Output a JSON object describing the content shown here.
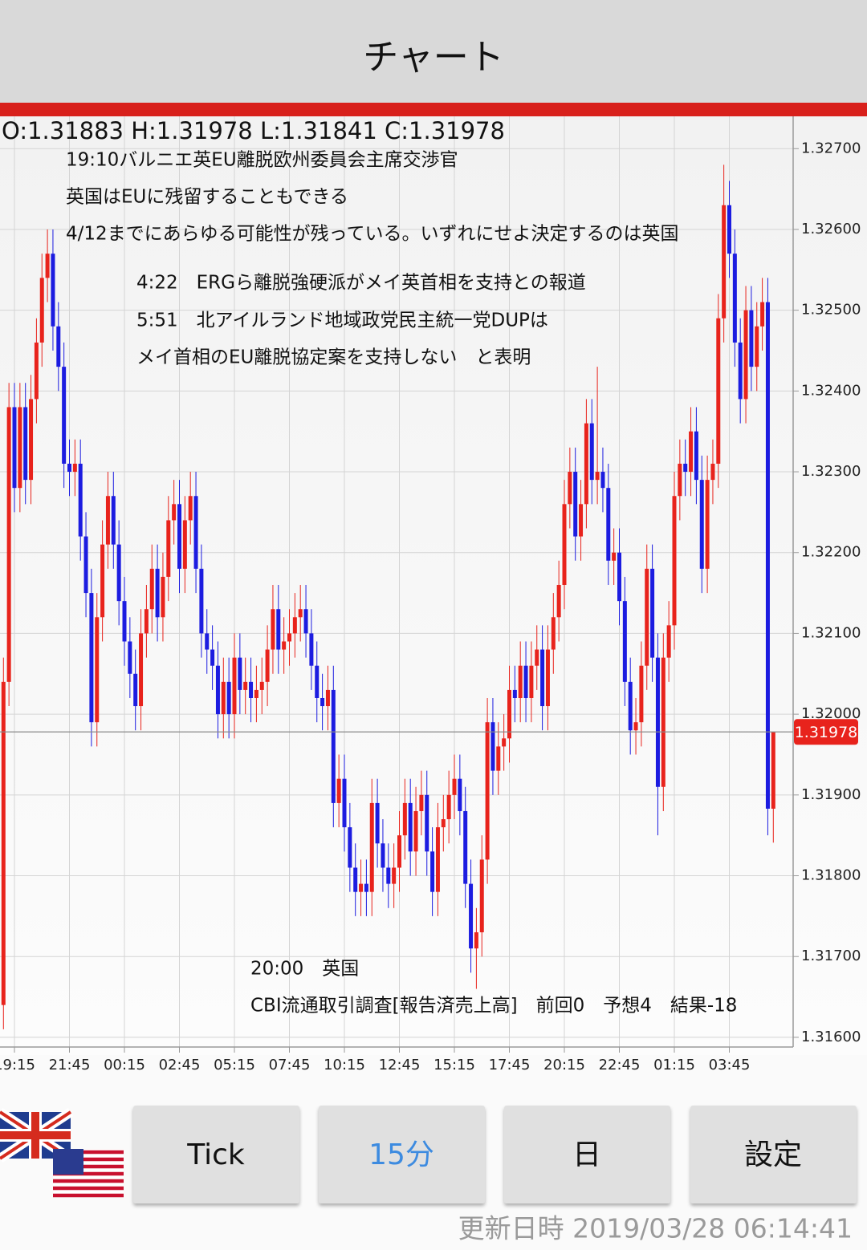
{
  "header": {
    "title": "チャート"
  },
  "chart_data": {
    "type": "candlestick",
    "ohlc_label": "O:1.31883 H:1.31978 L:1.31841 C:1.31978",
    "annotations": [
      "19:10バルニエ英EU離脱欧州委員会主席交渉官",
      "英国はEUに残留することもできる",
      "4/12までにあらゆる可能性が残っている。いずれにせよ決定するのは英国",
      "4:22　ERGら離脱強硬派がメイ英首相を支持との報道",
      "5:51　北アイルランド地域政党民主統一党DUPは",
      "メイ首相のEU離脱協定案を支持しない　と表明",
      "20:00　英国",
      "CBI流通取引調査[報告済売上高]　前回0　予想4　結果-18"
    ],
    "categories": [
      null,
      null,
      "19:15",
      null,
      null,
      null,
      null,
      null,
      null,
      null,
      null,
      null,
      "21:45",
      null,
      null,
      null,
      null,
      null,
      null,
      null,
      null,
      null,
      "00:15",
      null,
      null,
      null,
      null,
      null,
      null,
      null,
      null,
      null,
      "02:45",
      null,
      null,
      null,
      null,
      null,
      null,
      null,
      null,
      null,
      "05:15",
      null,
      null,
      null,
      null,
      null,
      null,
      null,
      null,
      null,
      "07:45",
      null,
      null,
      null,
      null,
      null,
      null,
      null,
      null,
      null,
      "10:15",
      null,
      null,
      null,
      null,
      null,
      null,
      null,
      null,
      null,
      "12:45",
      null,
      null,
      null,
      null,
      null,
      null,
      null,
      null,
      null,
      "15:15",
      null,
      null,
      null,
      null,
      null,
      null,
      null,
      null,
      null,
      "17:45",
      null,
      null,
      null,
      null,
      null,
      null,
      null,
      null,
      null,
      "20:15",
      null,
      null,
      null,
      null,
      null,
      null,
      null,
      null,
      null,
      "22:45",
      null,
      null,
      null,
      null,
      null,
      null,
      null,
      null,
      null,
      "01:15",
      null,
      null,
      null,
      null,
      null,
      null,
      null,
      null,
      null,
      "03:45",
      null,
      null,
      null,
      null,
      null,
      null,
      null,
      null
    ],
    "open": [
      1.3164,
      1.3204,
      1.3238,
      1.3228,
      1.3238,
      1.3229,
      1.3239,
      1.3246,
      1.3254,
      1.3257,
      1.3248,
      1.3243,
      1.3231,
      1.323,
      1.3231,
      1.3222,
      1.3215,
      1.3199,
      1.3212,
      1.3221,
      1.3227,
      1.3221,
      1.3214,
      1.3209,
      1.3205,
      1.3201,
      1.321,
      1.3213,
      1.3218,
      1.3212,
      1.3217,
      1.3224,
      1.3226,
      1.3218,
      1.3224,
      1.3227,
      1.3218,
      1.321,
      1.3208,
      1.3206,
      1.32,
      1.3204,
      1.32,
      1.3207,
      1.3203,
      1.3204,
      1.3202,
      1.3203,
      1.3204,
      1.3208,
      1.3213,
      1.3208,
      1.3209,
      1.321,
      1.3212,
      1.3213,
      1.321,
      1.3206,
      1.3202,
      1.3201,
      1.3203,
      1.3189,
      1.3192,
      1.3186,
      1.3181,
      1.3178,
      1.3179,
      1.3178,
      1.3189,
      1.3184,
      1.3181,
      1.3179,
      1.3181,
      1.3185,
      1.3189,
      1.3183,
      1.3188,
      1.319,
      1.3183,
      1.3178,
      1.3186,
      1.3187,
      1.319,
      1.3192,
      1.3188,
      1.3179,
      1.3171,
      1.3173,
      1.3182,
      1.3199,
      1.3193,
      1.3196,
      1.3197,
      1.3203,
      1.3202,
      1.3206,
      1.3202,
      1.3206,
      1.3208,
      1.3201,
      1.3208,
      1.3212,
      1.3216,
      1.3226,
      1.323,
      1.3222,
      1.3226,
      1.3236,
      1.3229,
      1.323,
      1.3228,
      1.3219,
      1.322,
      1.3214,
      1.3204,
      1.3198,
      1.3199,
      1.3206,
      1.3218,
      1.3207,
      1.3191,
      1.3207,
      1.3211,
      1.3227,
      1.3231,
      1.323,
      1.3235,
      1.3229,
      1.3218,
      1.3229,
      1.3231,
      1.3249,
      1.3263,
      1.3257,
      1.3246,
      1.3239,
      1.325,
      1.3243,
      1.3248,
      1.3251,
      1.31883
    ],
    "high": [
      1.3207,
      1.3241,
      1.3241,
      1.3241,
      1.3241,
      1.3242,
      1.3249,
      1.3257,
      1.326,
      1.326,
      1.3251,
      1.3246,
      1.3234,
      1.3234,
      1.3234,
      1.3225,
      1.3218,
      1.3215,
      1.3224,
      1.323,
      1.323,
      1.3224,
      1.3217,
      1.3212,
      1.3208,
      1.3213,
      1.3216,
      1.3221,
      1.3221,
      1.322,
      1.3227,
      1.3229,
      1.3229,
      1.3227,
      1.323,
      1.323,
      1.3221,
      1.3213,
      1.3211,
      1.3209,
      1.3207,
      1.3207,
      1.321,
      1.321,
      1.3207,
      1.3207,
      1.3206,
      1.3207,
      1.3211,
      1.3216,
      1.3216,
      1.3212,
      1.3213,
      1.3215,
      1.3216,
      1.3216,
      1.3213,
      1.3209,
      1.3205,
      1.3206,
      1.3206,
      1.3195,
      1.3195,
      1.3189,
      1.3184,
      1.3182,
      1.3182,
      1.3192,
      1.3192,
      1.3187,
      1.3184,
      1.3184,
      1.3188,
      1.3192,
      1.3192,
      1.3191,
      1.3193,
      1.3193,
      1.3186,
      1.3189,
      1.319,
      1.3193,
      1.3195,
      1.3195,
      1.3191,
      1.3182,
      1.3176,
      1.3185,
      1.3202,
      1.3202,
      1.3199,
      1.32,
      1.3206,
      1.3206,
      1.3209,
      1.3209,
      1.3209,
      1.3211,
      1.3211,
      1.3211,
      1.3215,
      1.3219,
      1.3229,
      1.3233,
      1.3233,
      1.3229,
      1.3239,
      1.3239,
      1.3243,
      1.3233,
      1.3231,
      1.3223,
      1.3223,
      1.3217,
      1.3207,
      1.3202,
      1.3209,
      1.3221,
      1.3221,
      1.321,
      1.321,
      1.3214,
      1.323,
      1.3234,
      1.3234,
      1.3238,
      1.3238,
      1.3232,
      1.3232,
      1.3234,
      1.3252,
      1.3268,
      1.3266,
      1.326,
      1.3249,
      1.3253,
      1.3253,
      1.3251,
      1.3254,
      1.3254,
      1.31978
    ],
    "low": [
      1.3161,
      1.3201,
      1.3225,
      1.3225,
      1.3226,
      1.3226,
      1.3236,
      1.3243,
      1.3251,
      1.3245,
      1.324,
      1.3228,
      1.3227,
      1.3227,
      1.3219,
      1.3212,
      1.3196,
      1.3196,
      1.3209,
      1.3218,
      1.3218,
      1.3211,
      1.3206,
      1.3202,
      1.3198,
      1.3198,
      1.3207,
      1.321,
      1.3209,
      1.3209,
      1.3214,
      1.3221,
      1.3215,
      1.3215,
      1.3221,
      1.3215,
      1.3207,
      1.3205,
      1.3203,
      1.3197,
      1.3197,
      1.3197,
      1.3197,
      1.32,
      1.32,
      1.3199,
      1.3199,
      1.32,
      1.3201,
      1.3205,
      1.3205,
      1.3205,
      1.3206,
      1.3207,
      1.3209,
      1.3207,
      1.3203,
      1.3199,
      1.3198,
      1.3198,
      1.3186,
      1.3186,
      1.3183,
      1.3178,
      1.3175,
      1.3175,
      1.3175,
      1.3175,
      1.3181,
      1.3178,
      1.3176,
      1.3176,
      1.3178,
      1.3182,
      1.318,
      1.318,
      1.3185,
      1.318,
      1.3175,
      1.3175,
      1.3183,
      1.3184,
      1.3187,
      1.3185,
      1.3176,
      1.3168,
      1.3166,
      1.317,
      1.3179,
      1.319,
      1.319,
      1.3193,
      1.3194,
      1.3199,
      1.3199,
      1.3199,
      1.3199,
      1.3203,
      1.3198,
      1.3198,
      1.3205,
      1.3209,
      1.3213,
      1.3223,
      1.3219,
      1.3219,
      1.3223,
      1.3226,
      1.3226,
      1.3225,
      1.3216,
      1.3216,
      1.3211,
      1.3201,
      1.3195,
      1.3195,
      1.3196,
      1.3203,
      1.3204,
      1.3185,
      1.3188,
      1.3204,
      1.3208,
      1.3224,
      1.3227,
      1.3227,
      1.3226,
      1.3215,
      1.3215,
      1.3226,
      1.3228,
      1.3246,
      1.3254,
      1.3243,
      1.3236,
      1.3236,
      1.324,
      1.324,
      1.3245,
      1.3185,
      1.31841
    ],
    "close": [
      1.3204,
      1.3238,
      1.3228,
      1.3238,
      1.3229,
      1.3239,
      1.3246,
      1.3254,
      1.3257,
      1.3248,
      1.3243,
      1.3231,
      1.323,
      1.3231,
      1.3222,
      1.3215,
      1.3199,
      1.3212,
      1.3221,
      1.3227,
      1.3221,
      1.3214,
      1.3209,
      1.3205,
      1.3201,
      1.321,
      1.3213,
      1.3218,
      1.3212,
      1.3217,
      1.3224,
      1.3226,
      1.3218,
      1.3224,
      1.3227,
      1.3218,
      1.321,
      1.3208,
      1.3206,
      1.32,
      1.3204,
      1.32,
      1.3207,
      1.3203,
      1.3204,
      1.3202,
      1.3203,
      1.3204,
      1.3208,
      1.3213,
      1.3208,
      1.3209,
      1.321,
      1.3212,
      1.3213,
      1.321,
      1.3206,
      1.3202,
      1.3201,
      1.3203,
      1.3189,
      1.3192,
      1.3186,
      1.3181,
      1.3178,
      1.3179,
      1.3178,
      1.3189,
      1.3184,
      1.3181,
      1.3179,
      1.3181,
      1.3185,
      1.3189,
      1.3183,
      1.3188,
      1.319,
      1.3183,
      1.3178,
      1.3186,
      1.3187,
      1.319,
      1.3192,
      1.3188,
      1.3179,
      1.3171,
      1.3173,
      1.3182,
      1.3199,
      1.3193,
      1.3196,
      1.3197,
      1.3203,
      1.3202,
      1.3206,
      1.3202,
      1.3206,
      1.3208,
      1.3201,
      1.3208,
      1.3212,
      1.3216,
      1.3226,
      1.323,
      1.3222,
      1.3226,
      1.3236,
      1.3229,
      1.323,
      1.3228,
      1.3219,
      1.322,
      1.3214,
      1.3204,
      1.3198,
      1.3199,
      1.3206,
      1.3218,
      1.3207,
      1.3191,
      1.3207,
      1.3211,
      1.3227,
      1.3231,
      1.323,
      1.3235,
      1.3229,
      1.3218,
      1.3229,
      1.3231,
      1.3249,
      1.3263,
      1.3257,
      1.3246,
      1.3239,
      1.325,
      1.3243,
      1.3248,
      1.3251,
      1.31883,
      1.31978
    ],
    "up_color": "#e8231c",
    "down_color": "#1c1ce0",
    "current_price": 1.31978,
    "current_price_color": "#e8231c",
    "ylim": [
      1.31588,
      1.32737
    ],
    "yticks": [
      {
        "value": 1.316,
        "label": "1.31600"
      },
      {
        "value": 1.317,
        "label": "1.31700"
      },
      {
        "value": 1.318,
        "label": "1.31800"
      },
      {
        "value": 1.319,
        "label": "1.31900"
      },
      {
        "value": 1.32,
        "label": "1.32000"
      },
      {
        "value": 1.321,
        "label": "1.32100"
      },
      {
        "value": 1.322,
        "label": "1.32200"
      },
      {
        "value": 1.323,
        "label": "1.32300"
      },
      {
        "value": 1.324,
        "label": "1.32400"
      },
      {
        "value": 1.325,
        "label": "1.32500"
      },
      {
        "value": 1.326,
        "label": "1.32600"
      },
      {
        "value": 1.327,
        "label": "1.32700"
      }
    ],
    "grid": true
  },
  "buttons": [
    {
      "label": "Tick"
    },
    {
      "label": "15分",
      "selected": true
    },
    {
      "label": "日"
    },
    {
      "label": "設定"
    }
  ],
  "footer": {
    "updated": "更新日時 2019/03/28 06:14:41"
  }
}
